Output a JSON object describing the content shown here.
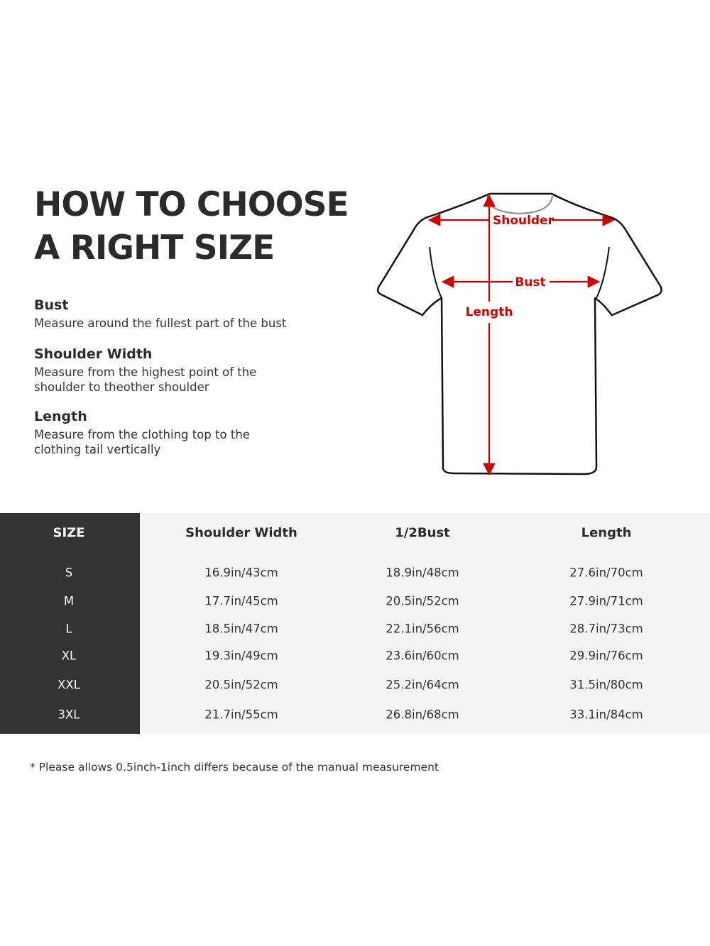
{
  "title_lines": [
    "HOW TO CHOOSE",
    "A RIGHT SIZE"
  ],
  "definitions": [
    {
      "term": "Bust",
      "description": "Measure around the fullest part of the bust"
    },
    {
      "term": "Shoulder Width",
      "description": "Measure from the highest point of the shoulder to theother shoulder"
    },
    {
      "term": "Length",
      "description": "Measure from the clothing top to the clothing tail vertically"
    }
  ],
  "diagram": {
    "labels": {
      "shoulder": "Shoulder",
      "bust": "Bust",
      "length": "Length"
    },
    "arrow_color": "#cc0000"
  },
  "table": {
    "headers": [
      "SIZE",
      "Shoulder Width",
      "1/2Bust",
      "Length"
    ],
    "rows": [
      [
        "S",
        "16.9in/43cm",
        "18.9in/48cm",
        "27.6in/70cm"
      ],
      [
        "M",
        "17.7in/45cm",
        "20.5in/52cm",
        "27.9in/71cm"
      ],
      [
        "L",
        "18.5in/47cm",
        "22.1in/56cm",
        "28.7in/73cm"
      ],
      [
        "XL",
        "19.3in/49cm",
        "23.6in/60cm",
        "29.9in/76cm"
      ],
      [
        "XXL",
        "20.5in/52cm",
        "25.2in/64cm",
        "31.5in/80cm"
      ],
      [
        "3XL",
        "21.7in/55cm",
        "26.8in/68cm",
        "33.1in/84cm"
      ]
    ]
  },
  "note": "* Please allows 0.5inch-1inch differs because of the  manual measurement"
}
